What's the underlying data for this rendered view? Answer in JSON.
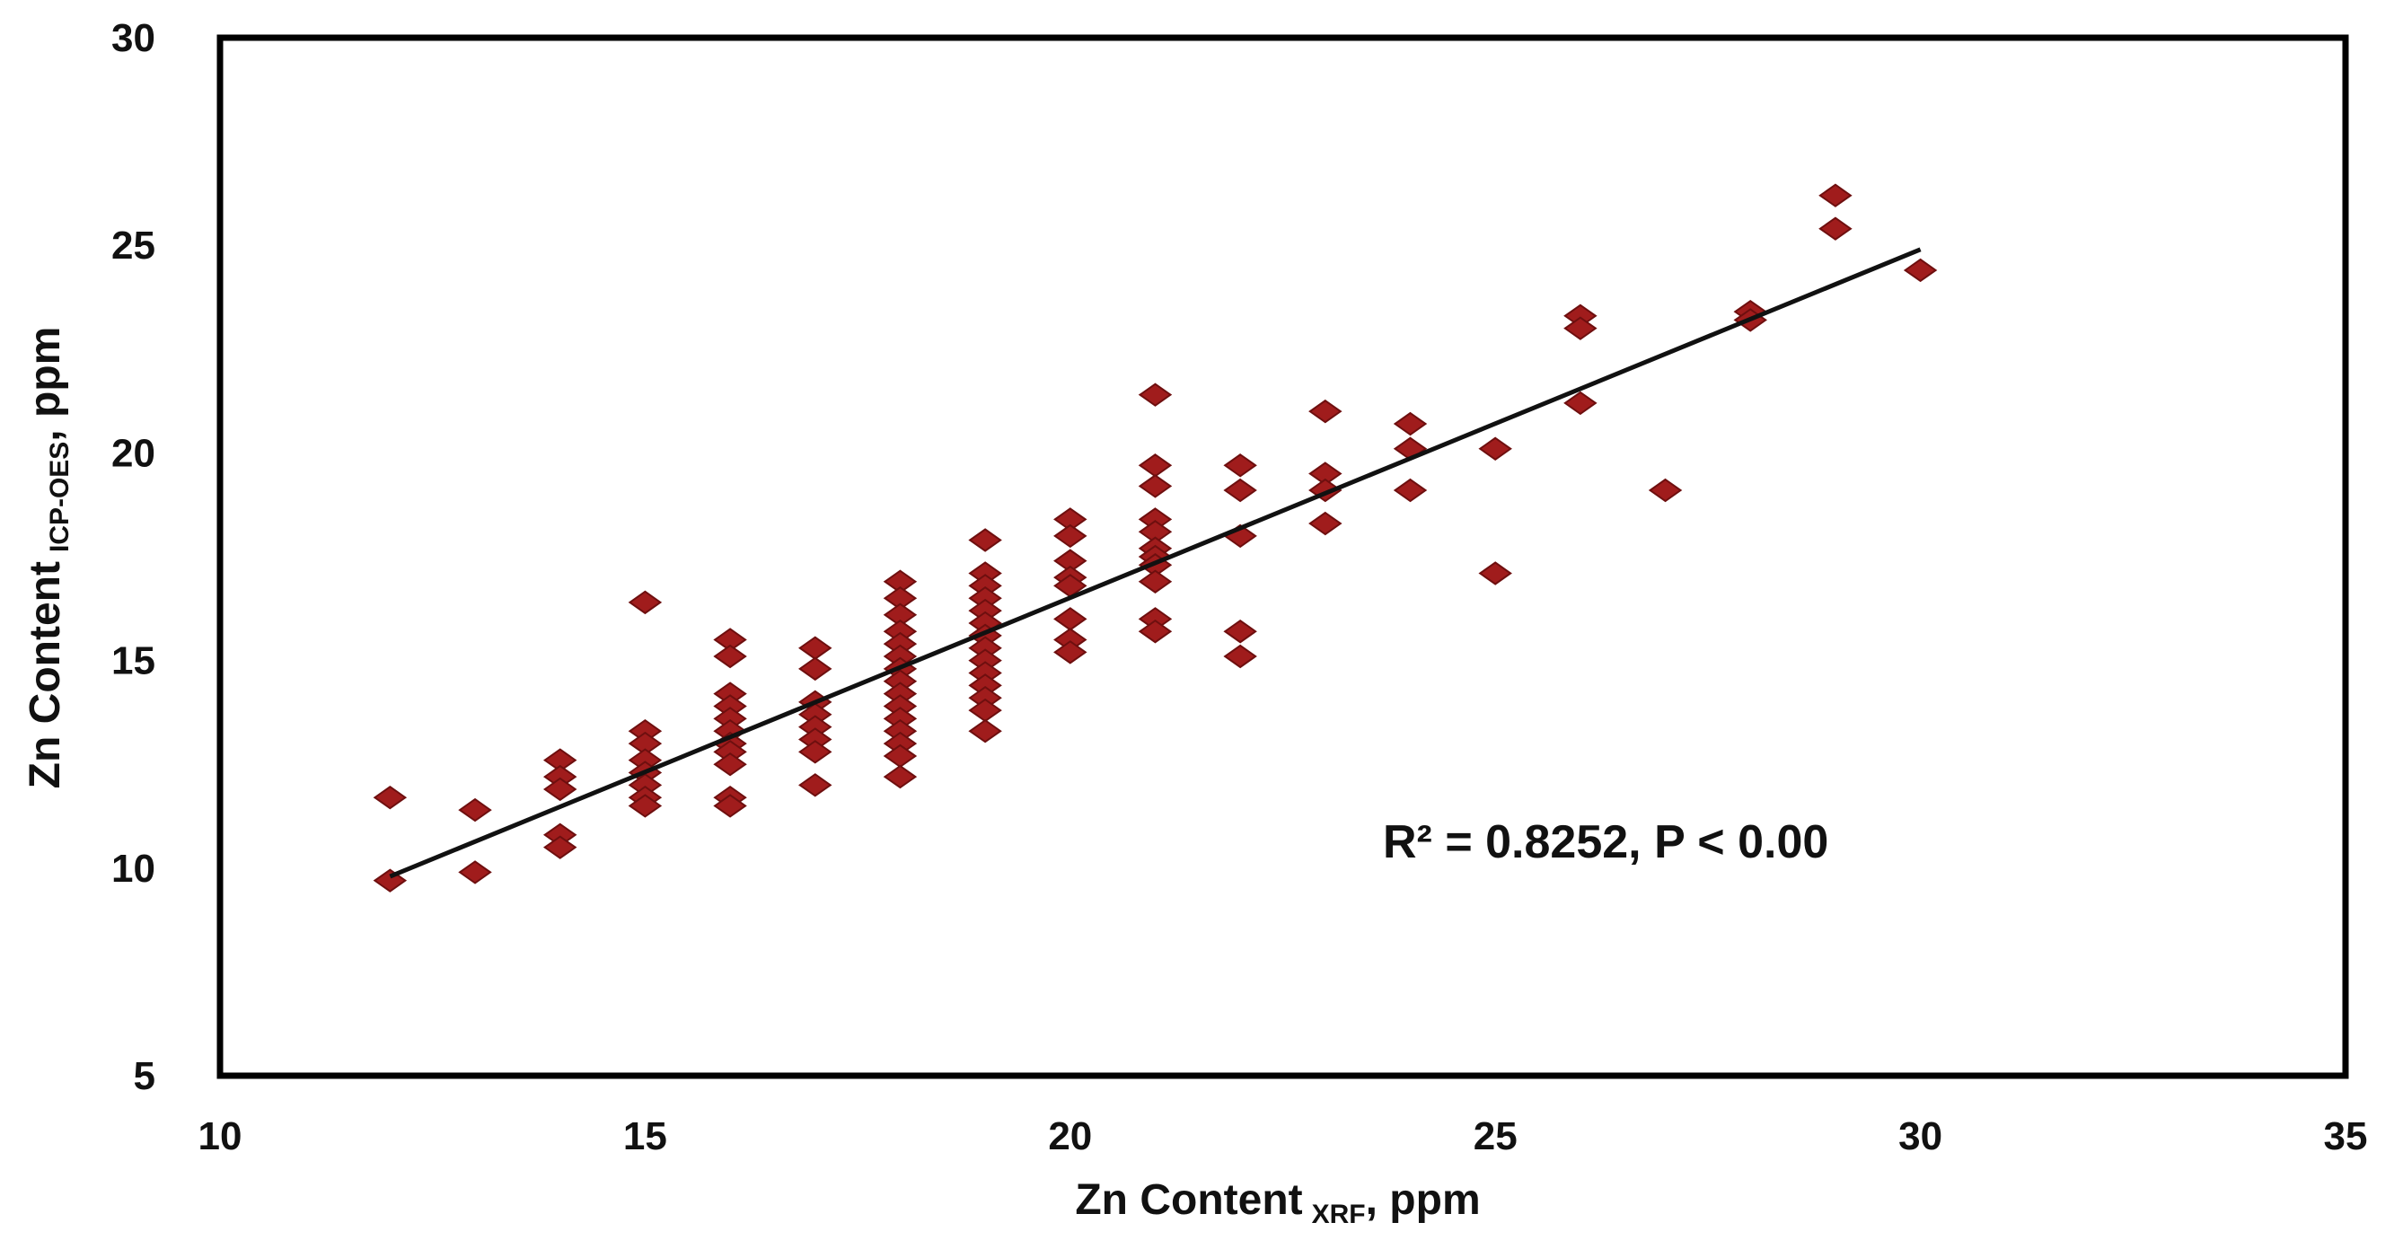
{
  "chart_data": {
    "type": "scatter",
    "x_label": {
      "main": "Zn Content",
      "sub": "XRF",
      "unit": ", ppm"
    },
    "y_label": {
      "main": "Zn Content",
      "sub": "ICP-OES",
      "unit": ", ppm"
    },
    "xlim": [
      10,
      35
    ],
    "ylim": [
      5,
      30
    ],
    "x_ticks": [
      10,
      15,
      20,
      25,
      30,
      35
    ],
    "y_ticks": [
      5,
      10,
      15,
      20,
      25,
      30
    ],
    "grid": false,
    "legend": "none",
    "annotation": "R² = 0.8252,  P < 0.00",
    "marker": {
      "shape": "diamond",
      "color": "#a01c1c",
      "edge": "#6e0f0f"
    },
    "trendline": {
      "x": [
        12,
        30
      ],
      "y": [
        9.8,
        24.9
      ],
      "color": "#111111"
    },
    "series": [
      {
        "points": [
          [
            12,
            11.7
          ],
          [
            12,
            9.7
          ],
          [
            13,
            11.4
          ],
          [
            13,
            9.9
          ],
          [
            14,
            12.6
          ],
          [
            14,
            12.2
          ],
          [
            14,
            11.9
          ],
          [
            14,
            10.8
          ],
          [
            14,
            10.5
          ],
          [
            15,
            16.4
          ],
          [
            15,
            13.3
          ],
          [
            15,
            13.0
          ],
          [
            15,
            12.6
          ],
          [
            15,
            12.3
          ],
          [
            15,
            12.0
          ],
          [
            15,
            11.7
          ],
          [
            15,
            11.5
          ],
          [
            16,
            15.5
          ],
          [
            16,
            15.1
          ],
          [
            16,
            14.2
          ],
          [
            16,
            13.9
          ],
          [
            16,
            13.6
          ],
          [
            16,
            13.3
          ],
          [
            16,
            13.0
          ],
          [
            16,
            12.8
          ],
          [
            16,
            12.5
          ],
          [
            16,
            11.7
          ],
          [
            16,
            11.5
          ],
          [
            17,
            15.3
          ],
          [
            17,
            14.8
          ],
          [
            17,
            14.0
          ],
          [
            17,
            13.7
          ],
          [
            17,
            13.4
          ],
          [
            17,
            13.1
          ],
          [
            17,
            12.8
          ],
          [
            17,
            12.0
          ],
          [
            18,
            16.9
          ],
          [
            18,
            16.5
          ],
          [
            18,
            16.1
          ],
          [
            18,
            15.7
          ],
          [
            18,
            15.4
          ],
          [
            18,
            15.1
          ],
          [
            18,
            14.8
          ],
          [
            18,
            14.5
          ],
          [
            18,
            14.2
          ],
          [
            18,
            13.9
          ],
          [
            18,
            13.6
          ],
          [
            18,
            13.3
          ],
          [
            18,
            13.0
          ],
          [
            18,
            12.7
          ],
          [
            18,
            12.2
          ],
          [
            19,
            17.9
          ],
          [
            19,
            17.1
          ],
          [
            19,
            16.8
          ],
          [
            19,
            16.5
          ],
          [
            19,
            16.2
          ],
          [
            19,
            15.9
          ],
          [
            19,
            15.6
          ],
          [
            19,
            15.3
          ],
          [
            19,
            15.0
          ],
          [
            19,
            14.7
          ],
          [
            19,
            14.4
          ],
          [
            19,
            14.1
          ],
          [
            19,
            13.8
          ],
          [
            19,
            13.3
          ],
          [
            20,
            18.4
          ],
          [
            20,
            18.0
          ],
          [
            20,
            17.4
          ],
          [
            20,
            17.0
          ],
          [
            20,
            16.8
          ],
          [
            20,
            16.0
          ],
          [
            20,
            15.5
          ],
          [
            20,
            15.2
          ],
          [
            21,
            21.4
          ],
          [
            21,
            19.7
          ],
          [
            21,
            19.2
          ],
          [
            21,
            18.4
          ],
          [
            21,
            18.1
          ],
          [
            21,
            17.7
          ],
          [
            21,
            17.5
          ],
          [
            21,
            17.3
          ],
          [
            21,
            16.9
          ],
          [
            21,
            16.0
          ],
          [
            21,
            15.7
          ],
          [
            22,
            19.7
          ],
          [
            22,
            19.1
          ],
          [
            22,
            18.0
          ],
          [
            22,
            15.7
          ],
          [
            22,
            15.1
          ],
          [
            23,
            21.0
          ],
          [
            23,
            19.5
          ],
          [
            23,
            19.1
          ],
          [
            23,
            18.3
          ],
          [
            24,
            20.7
          ],
          [
            24,
            20.1
          ],
          [
            24,
            19.1
          ],
          [
            25,
            20.1
          ],
          [
            25,
            17.1
          ],
          [
            26,
            23.3
          ],
          [
            26,
            23.0
          ],
          [
            26,
            21.2
          ],
          [
            27,
            19.1
          ],
          [
            28,
            23.4
          ],
          [
            28,
            23.2
          ],
          [
            29,
            26.2
          ],
          [
            29,
            25.4
          ],
          [
            30,
            24.4
          ]
        ]
      }
    ]
  }
}
